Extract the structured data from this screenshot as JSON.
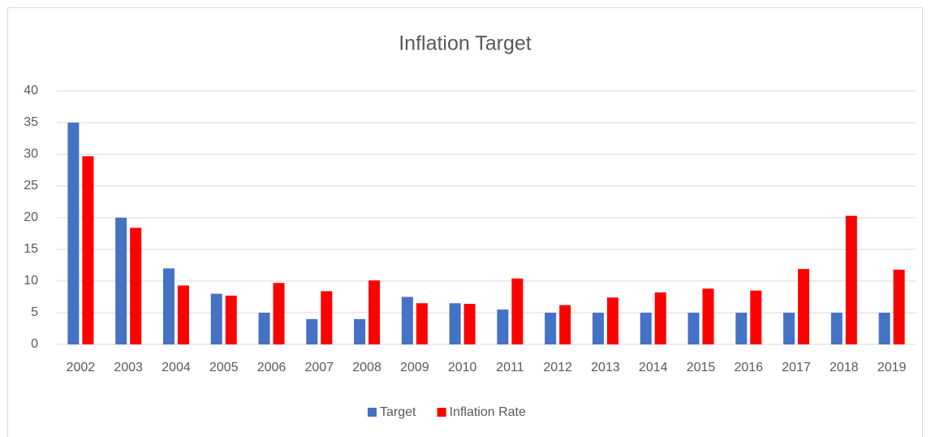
{
  "chart_data": {
    "type": "bar",
    "title": "Inflation Target",
    "categories": [
      "2002",
      "2003",
      "2004",
      "2005",
      "2006",
      "2007",
      "2008",
      "2009",
      "2010",
      "2011",
      "2012",
      "2013",
      "2014",
      "2015",
      "2016",
      "2017",
      "2018",
      "2019"
    ],
    "series": [
      {
        "name": "Target",
        "color": "#4472c4",
        "values": [
          35,
          20,
          12,
          8,
          5,
          4,
          4,
          7.5,
          6.5,
          5.5,
          5,
          5,
          5,
          5,
          5,
          5,
          5,
          5
        ]
      },
      {
        "name": "Inflation Rate",
        "color": "#ff0000",
        "values": [
          29.7,
          18.4,
          9.3,
          7.7,
          9.7,
          8.4,
          10.1,
          6.5,
          6.4,
          10.4,
          6.2,
          7.4,
          8.2,
          8.8,
          8.5,
          11.9,
          20.3,
          11.8
        ]
      }
    ],
    "ylim": [
      0,
      40
    ],
    "yticks": [
      0,
      5,
      10,
      15,
      20,
      25,
      30,
      35,
      40
    ],
    "grid": true,
    "legend": "bottom"
  }
}
